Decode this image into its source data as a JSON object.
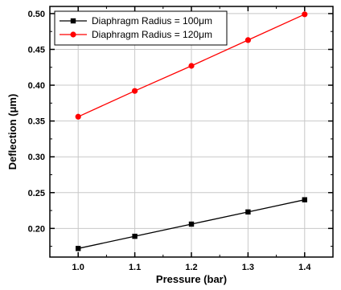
{
  "chart_data": {
    "type": "line",
    "x": [
      1.0,
      1.1,
      1.2,
      1.3,
      1.4
    ],
    "x_tick_labels": [
      "1.0",
      "1.1",
      "1.2",
      "1.3",
      "1.4"
    ],
    "y_tick_labels": [
      "0.20",
      "0.25",
      "0.30",
      "0.35",
      "0.40",
      "0.45",
      "0.50"
    ],
    "y_ticks": [
      0.2,
      0.25,
      0.3,
      0.35,
      0.4,
      0.45,
      0.5
    ],
    "xlim": [
      0.95,
      1.45
    ],
    "ylim": [
      0.16,
      0.51
    ],
    "xlabel": "Pressure (bar)",
    "ylabel": "Deflection (μm)",
    "grid": true,
    "legend_position": "top-left",
    "series": [
      {
        "name": "Diaphragm Radius = 100μm",
        "values": [
          0.172,
          0.189,
          0.206,
          0.223,
          0.24
        ],
        "color": "#000000",
        "marker": "square"
      },
      {
        "name": "Diaphragm Radius = 120μm",
        "values": [
          0.356,
          0.392,
          0.427,
          0.463,
          0.499
        ],
        "color": "#ff0000",
        "marker": "circle"
      }
    ]
  }
}
